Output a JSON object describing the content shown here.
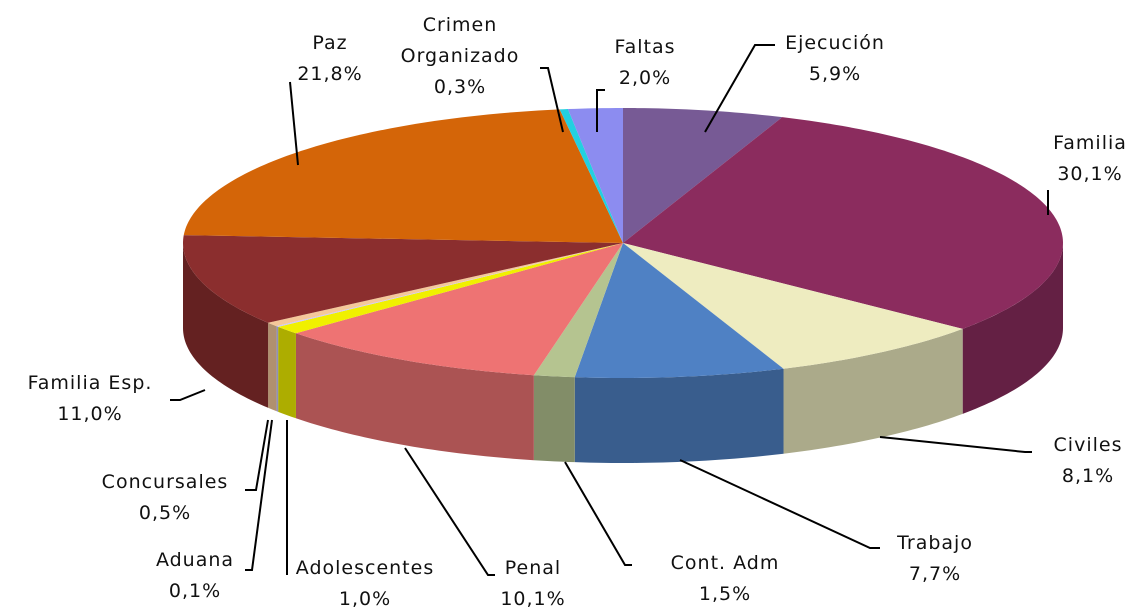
{
  "chart_data": {
    "type": "pie",
    "categories": [
      "Ejecución",
      "Familia",
      "Civiles",
      "Trabajo",
      "Cont. Adm",
      "Penal",
      "Adolescentes",
      "Aduana",
      "Concursales",
      "Familia Esp.",
      "Paz",
      "Crimen Organizado",
      "Faltas"
    ],
    "values": [
      5.9,
      30.1,
      8.1,
      7.7,
      1.5,
      10.1,
      1.0,
      0.1,
      0.5,
      11.0,
      21.8,
      0.3,
      2.0
    ],
    "value_labels": [
      "5,9%",
      "30,1%",
      "8,1%",
      "7,7%",
      "1,5%",
      "10,1%",
      "1,0%",
      "0,1%",
      "0,5%",
      "11,0%",
      "21,8%",
      "0,3%",
      "2,0%"
    ],
    "colors": [
      "#775a95",
      "#8b2c5e",
      "#eeecc0",
      "#4f81c4",
      "#b5c490",
      "#ee7373",
      "#f0f000",
      "#c8c8ff",
      "#f5c89a",
      "#8b2e2e",
      "#d46508",
      "#22d0e0",
      "#8c8cf0"
    ]
  }
}
